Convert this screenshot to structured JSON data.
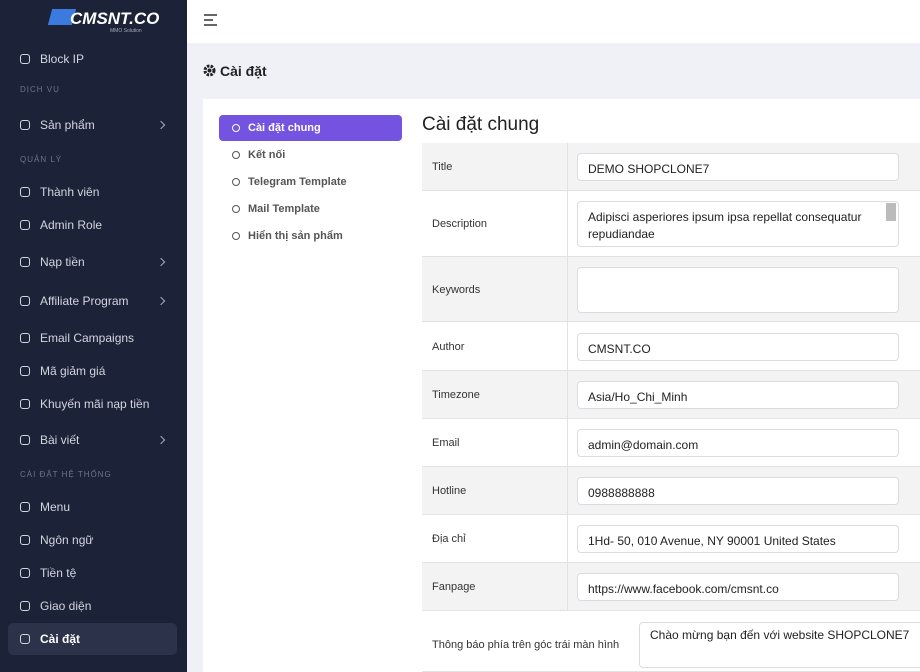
{
  "logo": {
    "title": "CMSNT.CO",
    "subtitle": "MMO Solution"
  },
  "sidebar": {
    "entries": [
      "Block IP",
      "DỊCH VỤ",
      "Sản phẩm",
      "QUẢN LÝ",
      "Thành viên",
      "Admin Role",
      "Nạp tiền",
      "Affiliate Program",
      "Email Campaigns",
      "Mã giảm giá",
      "Khuyến mãi nạp tiền",
      "Bài viết",
      "CÀI ĐẶT HỆ THỐNG",
      "Menu",
      "Ngôn ngữ",
      "Tiền tệ",
      "Giao diện",
      "Cài đặt"
    ]
  },
  "page_title": "Cài đặt",
  "tabs": [
    "Cài đặt chung",
    "Kết nối",
    "Telegram Template",
    "Mail Template",
    "Hiển thị sản phẩm"
  ],
  "form": {
    "heading": "Cài đặt chung",
    "rows": [
      {
        "label": "Title",
        "value": "DEMO SHOPCLONE7"
      },
      {
        "label": "Description",
        "value": "Adipisci asperiores ipsum ipsa repellat consequatur repudiandae"
      },
      {
        "label": "Keywords"
      },
      {
        "label": "Author",
        "value": "CMSNT.CO"
      },
      {
        "label": "Timezone",
        "value": "Asia/Ho_Chi_Minh"
      },
      {
        "label": "Email",
        "value": "admin@domain.com"
      },
      {
        "label": "Hotline",
        "value": "0988888888"
      },
      {
        "label": "Địa chỉ",
        "value": "1Hd- 50, 010 Avenue, NY 90001 United States"
      },
      {
        "label": "Fanpage",
        "value": "https://www.facebook.com/cmsnt.co"
      },
      {
        "label": "Thông báo phía trên góc trái màn hình",
        "value": "Chào mừng bạn đến với website SHOPCLONE7"
      }
    ]
  }
}
